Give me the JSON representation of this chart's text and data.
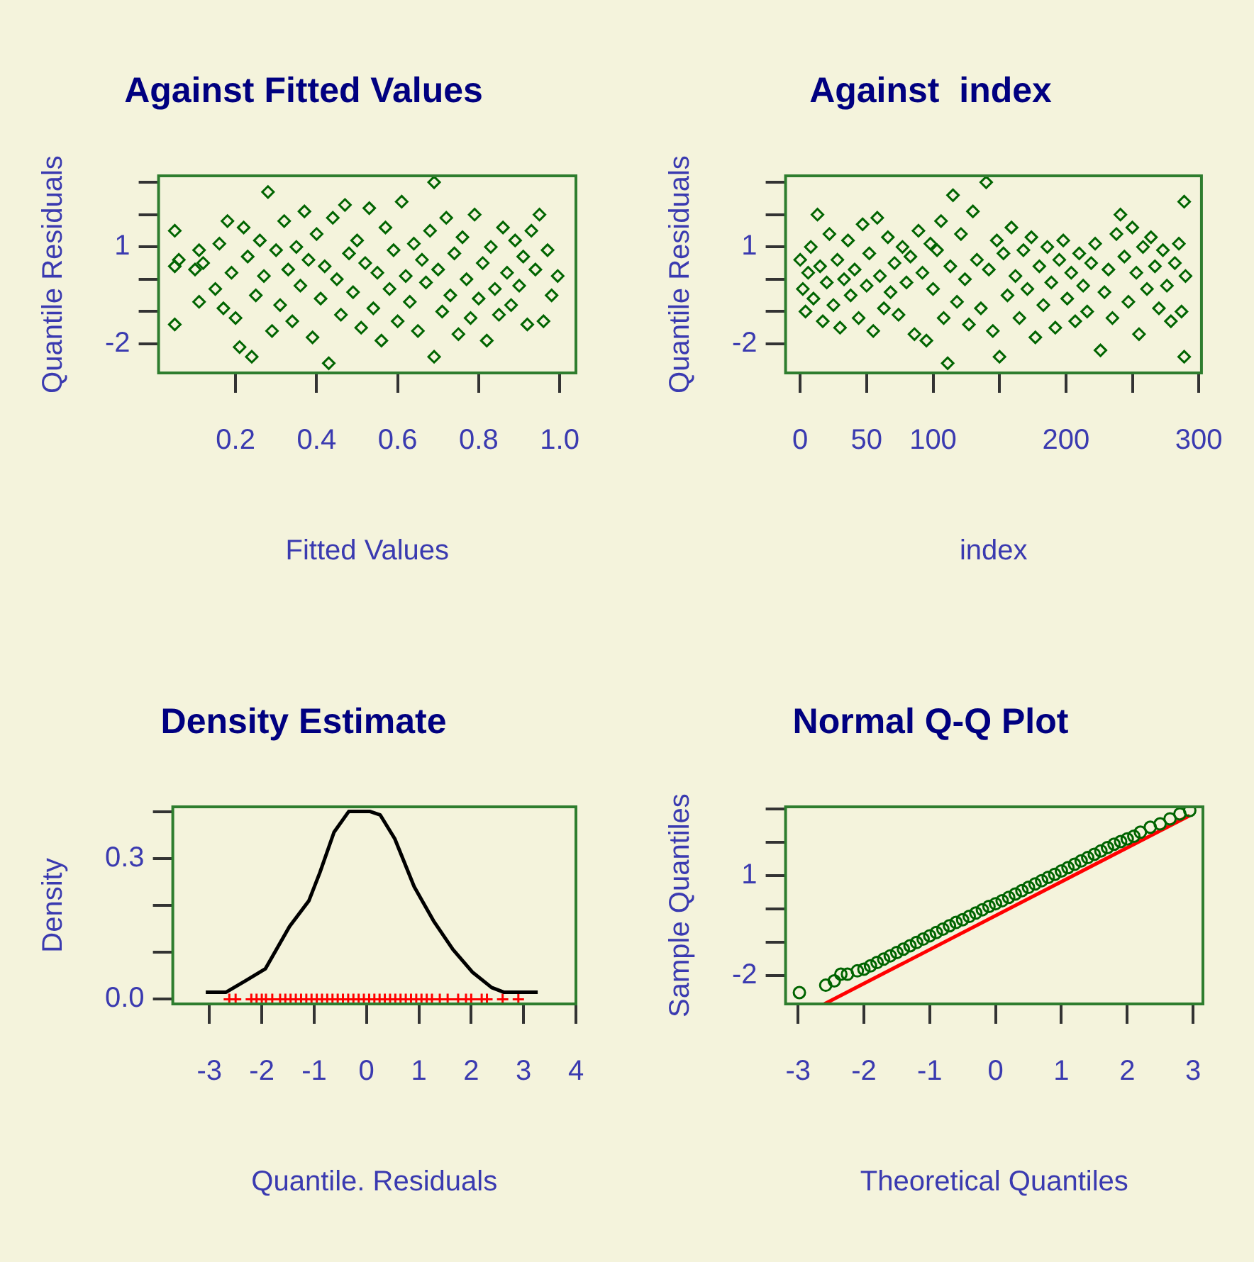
{
  "chart_data": [
    {
      "type": "scatter",
      "title": "Against Fitted Values",
      "xlabel": "Fitted Values",
      "ylabel": "Quantile Residuals",
      "marker": "diamond",
      "xlim": [
        0.01,
        1.04
      ],
      "xticks": [
        0.2,
        0.4,
        0.6,
        0.8,
        {
          "value": 1,
          "label": "1.0"
        }
      ],
      "ylim": [
        -2.9,
        3.2
      ],
      "yticks": [
        {
          "value": -2,
          "label": "-2"
        },
        {
          "value": -1,
          "label": null
        },
        {
          "value": 0,
          "label": null
        },
        {
          "value": 1,
          "label": "1"
        },
        {
          "value": 2,
          "label": null
        },
        {
          "value": 3,
          "label": null
        }
      ],
      "grid": false,
      "series": [
        {
          "color": "#006400",
          "x": [
            0.05,
            0.05,
            0.05,
            0.06,
            0.11,
            0.11,
            0.1,
            0.12,
            0.15,
            0.16,
            0.17,
            0.18,
            0.19,
            0.2,
            0.21,
            0.22,
            0.23,
            0.24,
            0.25,
            0.26,
            0.27,
            0.28,
            0.29,
            0.3,
            0.31,
            0.32,
            0.33,
            0.34,
            0.35,
            0.36,
            0.37,
            0.38,
            0.39,
            0.4,
            0.41,
            0.42,
            0.43,
            0.44,
            0.45,
            0.46,
            0.47,
            0.48,
            0.49,
            0.5,
            0.51,
            0.52,
            0.53,
            0.54,
            0.55,
            0.56,
            0.57,
            0.58,
            0.59,
            0.6,
            0.61,
            0.62,
            0.63,
            0.64,
            0.65,
            0.66,
            0.67,
            0.68,
            0.69,
            0.69,
            0.7,
            0.71,
            0.72,
            0.73,
            0.74,
            0.75,
            0.76,
            0.77,
            0.78,
            0.79,
            0.8,
            0.81,
            0.82,
            0.83,
            0.84,
            0.85,
            0.86,
            0.87,
            0.88,
            0.89,
            0.9,
            0.91,
            0.92,
            0.93,
            0.94,
            0.95,
            0.96,
            0.97,
            0.98,
            0.995
          ],
          "values": [
            1.5,
            0.4,
            -1.4,
            0.6,
            0.9,
            -0.7,
            0.3,
            0.5,
            -0.3,
            1.1,
            -0.9,
            1.8,
            0.2,
            -1.2,
            -2.1,
            1.6,
            0.7,
            -2.4,
            -0.5,
            1.2,
            0.1,
            2.7,
            -1.6,
            0.9,
            -0.8,
            1.8,
            0.3,
            -1.3,
            1.0,
            -0.2,
            2.1,
            0.6,
            -1.8,
            1.4,
            -0.6,
            0.4,
            -2.6,
            1.9,
            0.0,
            -1.1,
            2.3,
            0.8,
            -0.4,
            1.2,
            -1.5,
            0.5,
            2.2,
            -0.9,
            0.2,
            -1.9,
            1.6,
            -0.3,
            0.9,
            -1.3,
            2.4,
            0.1,
            -0.7,
            1.1,
            -1.6,
            0.6,
            -0.1,
            1.5,
            3.0,
            -2.4,
            0.3,
            -1.0,
            1.9,
            -0.5,
            0.8,
            -1.7,
            1.3,
            0.0,
            -1.2,
            2.0,
            -0.6,
            0.5,
            -1.9,
            1.0,
            -0.3,
            -1.1,
            1.6,
            0.2,
            -0.8,
            1.2,
            -0.2,
            0.7,
            -1.4,
            1.5,
            0.3,
            2.0,
            -1.3,
            0.9,
            -0.5,
            0.1
          ]
        }
      ]
    },
    {
      "type": "scatter",
      "title": "Against  index",
      "xlabel": "index",
      "ylabel": "Quantile Residuals",
      "marker": "diamond",
      "xlim": [
        -11,
        302
      ],
      "xticks": [
        0,
        50,
        100,
        {
          "value": 150,
          "label": null
        },
        200,
        {
          "value": 250,
          "label": null
        },
        300
      ],
      "ylim": [
        -2.9,
        3.2
      ],
      "yticks": [
        {
          "value": -2,
          "label": "-2"
        },
        {
          "value": -1,
          "label": null
        },
        {
          "value": 0,
          "label": null
        },
        {
          "value": 1,
          "label": "1"
        },
        {
          "value": 2,
          "label": null
        },
        {
          "value": 3,
          "label": null
        }
      ],
      "grid": false,
      "series": [
        {
          "color": "#006400",
          "x": [
            0,
            2,
            4,
            6,
            8,
            10,
            13,
            15,
            17,
            20,
            22,
            25,
            28,
            30,
            33,
            36,
            38,
            41,
            44,
            47,
            50,
            52,
            55,
            58,
            60,
            63,
            66,
            68,
            71,
            74,
            77,
            80,
            83,
            86,
            89,
            92,
            95,
            98,
            100,
            103,
            106,
            108,
            111,
            113,
            115,
            118,
            121,
            124,
            127,
            130,
            133,
            136,
            140,
            142,
            145,
            148,
            150,
            153,
            156,
            159,
            162,
            165,
            168,
            171,
            174,
            177,
            180,
            183,
            186,
            189,
            192,
            195,
            198,
            201,
            204,
            207,
            210,
            213,
            216,
            219,
            222,
            226,
            229,
            232,
            235,
            238,
            241,
            244,
            247,
            250,
            253,
            255,
            258,
            261,
            264,
            267,
            270,
            273,
            276,
            279,
            282,
            285,
            287,
            289,
            289,
            290
          ],
          "values": [
            0.6,
            -0.3,
            -1.0,
            0.2,
            1.0,
            -0.6,
            2.0,
            0.4,
            -1.3,
            -0.1,
            1.4,
            -0.8,
            0.6,
            -1.5,
            0.0,
            1.2,
            -0.5,
            0.3,
            -1.2,
            1.7,
            -0.2,
            0.8,
            -1.6,
            1.9,
            0.1,
            -0.9,
            1.3,
            -0.4,
            0.5,
            -1.1,
            1.0,
            -0.1,
            0.7,
            -1.7,
            1.5,
            0.2,
            -1.9,
            1.1,
            -0.3,
            0.9,
            1.8,
            -1.2,
            -2.6,
            0.4,
            2.6,
            -0.7,
            1.4,
            0.0,
            -1.4,
            2.1,
            0.6,
            -0.9,
            3.0,
            0.3,
            -1.6,
            1.2,
            -2.4,
            0.8,
            -0.5,
            1.6,
            0.1,
            -1.2,
            0.9,
            -0.3,
            1.3,
            -1.8,
            0.4,
            -0.8,
            1.0,
            -0.1,
            -1.5,
            0.6,
            1.2,
            -0.6,
            0.2,
            -1.3,
            0.8,
            -0.2,
            -1.0,
            0.5,
            1.1,
            -2.2,
            -0.4,
            0.3,
            -1.2,
            1.4,
            2.0,
            0.7,
            -0.7,
            1.6,
            0.2,
            -1.7,
            1.0,
            -0.3,
            1.3,
            0.4,
            -0.9,
            0.9,
            -0.2,
            -1.3,
            0.5,
            1.1,
            -1.0,
            2.4,
            -2.4,
            0.1
          ]
        }
      ]
    },
    {
      "type": "line",
      "title": "Density Estimate",
      "xlabel": "Quantile. Residuals",
      "ylabel": "Density",
      "xlim": [
        -3.7,
        4.0
      ],
      "xticks": [
        -3,
        -2,
        -1,
        0,
        1,
        2,
        3,
        4
      ],
      "ylim": [
        -0.01,
        0.41
      ],
      "yticks": [
        {
          "value": 0,
          "label": "0.0"
        },
        {
          "value": 0.1,
          "label": null
        },
        {
          "value": 0.2,
          "label": null
        },
        {
          "value": 0.3,
          "label": "0.3"
        },
        {
          "value": 0.4,
          "label": null
        }
      ],
      "grid": false,
      "series": [
        {
          "color": "#000000",
          "marker": "none",
          "x": [
            -3.07,
            -2.68,
            -2.3,
            -1.93,
            -1.47,
            -1.1,
            -0.89,
            -0.62,
            -0.34,
            0.07,
            0.26,
            0.54,
            0.91,
            1.28,
            1.65,
            2.02,
            2.39,
            2.62,
            3.27
          ],
          "values": [
            0.015,
            0.015,
            0.04,
            0.065,
            0.155,
            0.21,
            0.27,
            0.356,
            0.4,
            0.4,
            0.393,
            0.342,
            0.24,
            0.167,
            0.106,
            0.058,
            0.025,
            0.015,
            0.015
          ]
        },
        {
          "type": "scatter",
          "color": "#ff0000",
          "marker": "cross",
          "x": [
            -2.62,
            -2.5,
            -2.2,
            -2.1,
            -2.0,
            -1.92,
            -1.8,
            -1.65,
            -1.55,
            -1.45,
            -1.35,
            -1.25,
            -1.15,
            -1.05,
            -0.95,
            -0.85,
            -0.75,
            -0.65,
            -0.55,
            -0.45,
            -0.35,
            -0.25,
            -0.15,
            -0.05,
            0.05,
            0.15,
            0.25,
            0.35,
            0.45,
            0.55,
            0.65,
            0.75,
            0.85,
            0.95,
            1.05,
            1.15,
            1.25,
            1.4,
            1.55,
            1.75,
            1.9,
            2.0,
            2.2,
            2.3,
            2.6,
            2.9
          ],
          "values": [
            0,
            0,
            0,
            0,
            0,
            0,
            0,
            0,
            0,
            0,
            0,
            0,
            0,
            0,
            0,
            0,
            0,
            0,
            0,
            0,
            0,
            0,
            0,
            0,
            0,
            0,
            0,
            0,
            0,
            0,
            0,
            0,
            0,
            0,
            0,
            0,
            0,
            0,
            0,
            0,
            0,
            0,
            0,
            0,
            0,
            0
          ]
        }
      ]
    },
    {
      "type": "scatter",
      "title": "Normal Q-Q Plot",
      "xlabel": "Theoretical Quantiles",
      "ylabel": "Sample Quantiles",
      "xlim": [
        -3.19,
        3.15
      ],
      "xticks": [
        -3,
        -2,
        -1,
        0,
        1,
        2,
        3
      ],
      "ylim": [
        -2.84,
        3.06
      ],
      "yticks": [
        {
          "value": -2,
          "label": "-2"
        },
        {
          "value": -1,
          "label": null
        },
        {
          "value": 0,
          "label": null
        },
        {
          "value": 1,
          "label": "1"
        },
        {
          "value": 2,
          "label": null
        },
        {
          "value": 3,
          "label": null
        }
      ],
      "grid": false,
      "series": [
        {
          "color": "#006400",
          "marker": "circle",
          "x": [
            -2.98,
            -2.58,
            -2.45,
            -2.35,
            -2.25,
            -2.1,
            -2.0,
            -1.9,
            -1.8,
            -1.7,
            -1.6,
            -1.5,
            -1.4,
            -1.3,
            -1.2,
            -1.1,
            -1.0,
            -0.9,
            -0.8,
            -0.7,
            -0.6,
            -0.5,
            -0.4,
            -0.3,
            -0.2,
            -0.1,
            0,
            0.1,
            0.2,
            0.3,
            0.4,
            0.5,
            0.6,
            0.7,
            0.8,
            0.9,
            1.0,
            1.1,
            1.2,
            1.3,
            1.4,
            1.5,
            1.6,
            1.7,
            1.8,
            1.9,
            2.0,
            2.1,
            2.2,
            2.35,
            2.5,
            2.65,
            2.8,
            2.95
          ],
          "values": [
            -2.5,
            -2.28,
            -2.15,
            -1.95,
            -1.95,
            -1.85,
            -1.8,
            -1.7,
            -1.6,
            -1.5,
            -1.4,
            -1.3,
            -1.2,
            -1.1,
            -1.0,
            -0.9,
            -0.8,
            -0.7,
            -0.6,
            -0.5,
            -0.4,
            -0.32,
            -0.22,
            -0.12,
            -0.02,
            0.08,
            0.16,
            0.25,
            0.35,
            0.45,
            0.55,
            0.65,
            0.75,
            0.85,
            0.95,
            1.04,
            1.14,
            1.24,
            1.34,
            1.44,
            1.54,
            1.64,
            1.74,
            1.84,
            1.94,
            2.02,
            2.1,
            2.18,
            2.3,
            2.45,
            2.55,
            2.7,
            2.85,
            2.95
          ]
        },
        {
          "type": "line",
          "color": "#ff0000",
          "marker": "none",
          "x": [
            -2.6,
            2.95
          ],
          "values": [
            -2.84,
            2.8
          ]
        }
      ]
    }
  ]
}
